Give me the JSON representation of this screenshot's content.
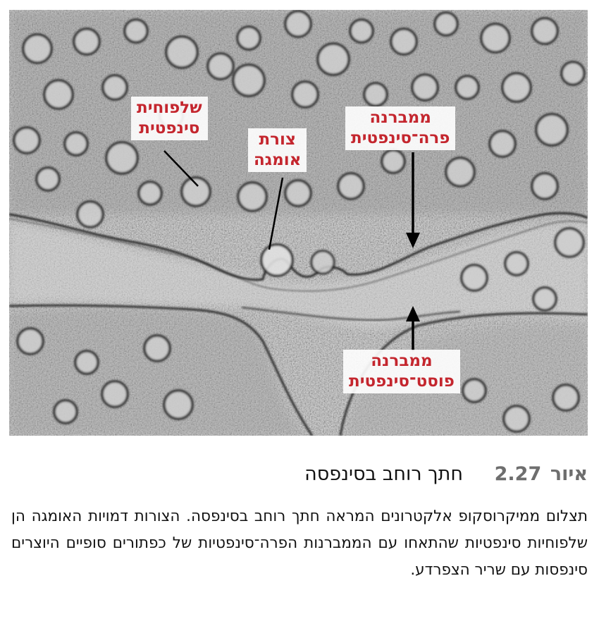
{
  "figure": {
    "labels": {
      "synaptic_vesicle": [
        "שלפוחית",
        "סינפטית"
      ],
      "omega_shape": [
        "צורת",
        "אומגה"
      ],
      "presynaptic_membrane": [
        "ממברנה",
        "פרה־סינפטית"
      ],
      "postsynaptic_membrane": [
        "ממברנה",
        "פוסט־סינפטית"
      ]
    },
    "colors": {
      "label_text": "#c4262e",
      "pointer": "#000000",
      "micrograph_bg": "#bdbdbd"
    }
  },
  "caption": {
    "lead": "איור",
    "number": "2.27",
    "title": "חתך רוחב בסינפסה",
    "body": "תצלום ממיקרוסקופ אלקטרונים המראה חתך רוחב בסינפסה. הצורות דמויות האומגה הן שלפוחיות סינפטיות שהתאחו עם הממברנות הפרה־סינפטיות של כפתורים סופיים היוצרים סינפסות עם שריר הצפרדע."
  }
}
